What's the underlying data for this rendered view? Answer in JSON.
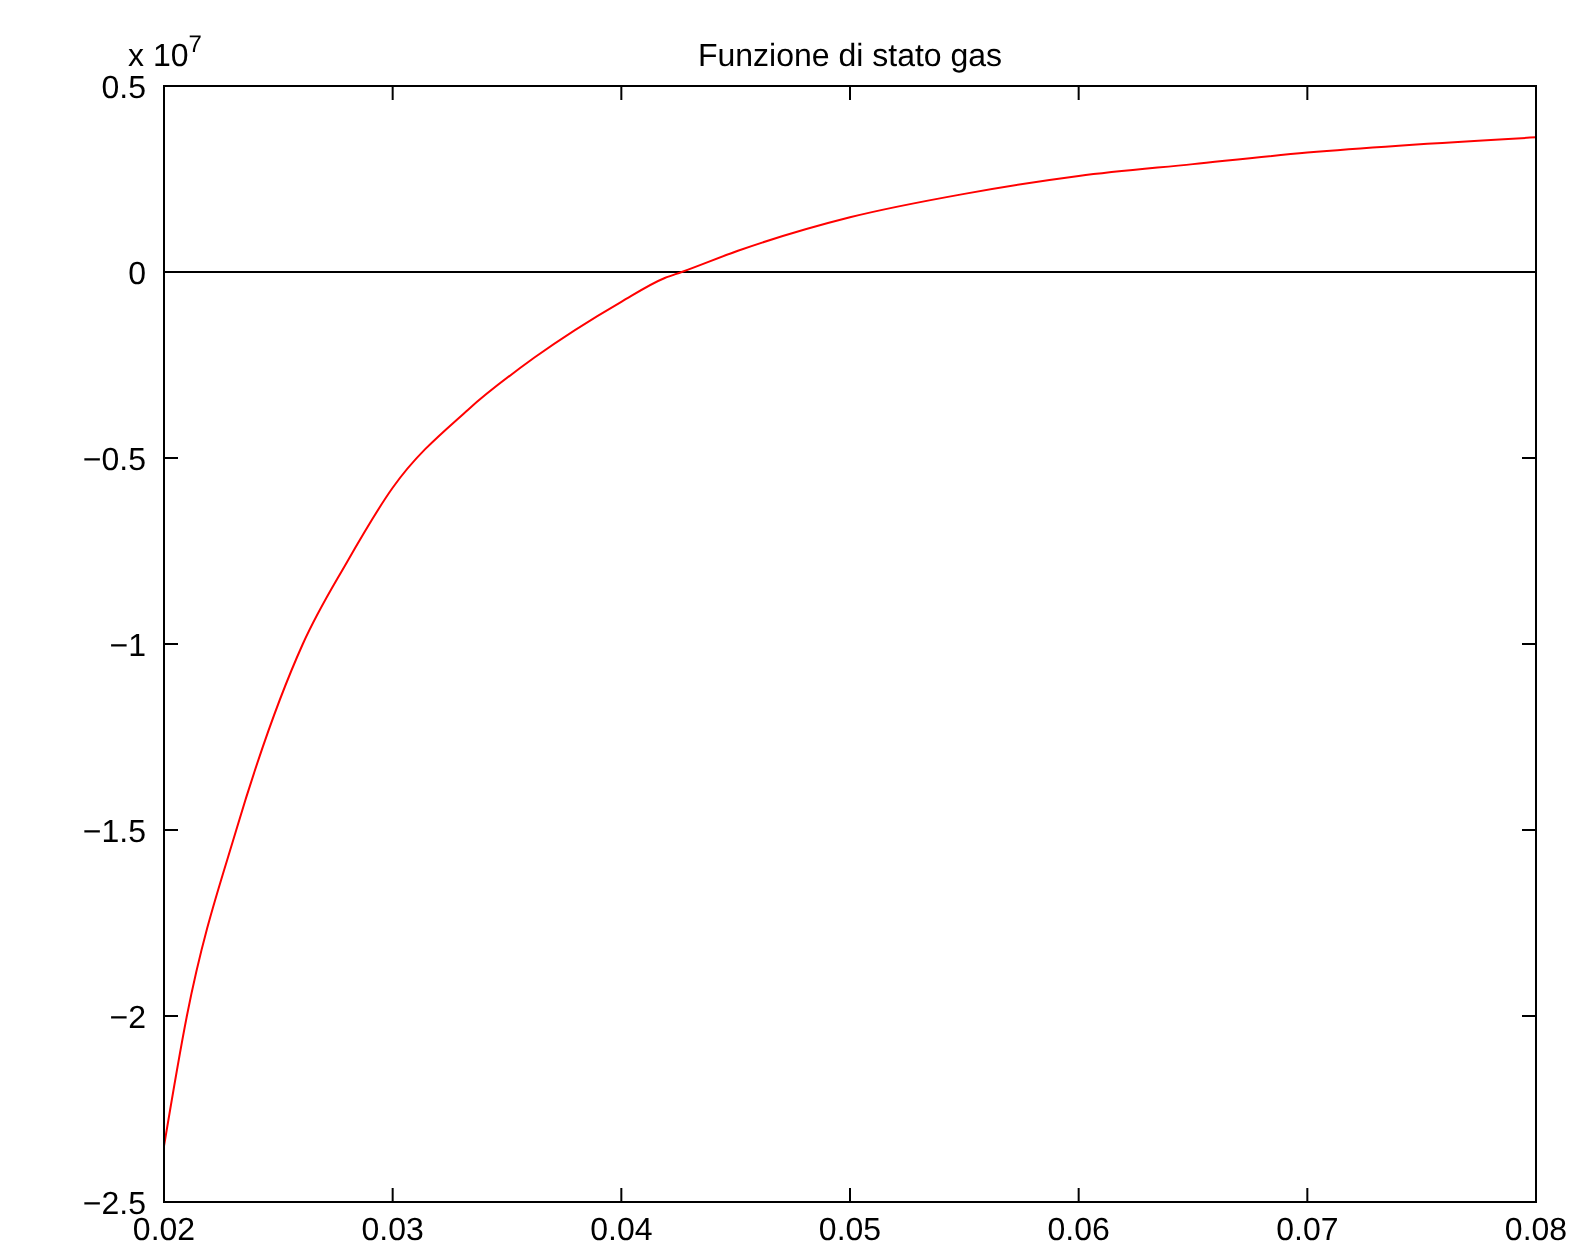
{
  "chart_data": {
    "type": "line",
    "title": "Funzione di stato gas",
    "x": [
      0.02,
      0.021,
      0.02316,
      0.02607,
      0.028,
      0.03,
      0.0333,
      0.0362,
      0.04,
      0.0419,
      0.04264,
      0.0451,
      0.05,
      0.055,
      0.06,
      0.065,
      0.07,
      0.08
    ],
    "series": [
      {
        "color": "#ff0000",
        "values": [
          -2.35,
          -2.0,
          -1.5,
          -1.0,
          -0.78,
          -0.58,
          -0.37,
          -0.23,
          -0.08,
          -0.016,
          0,
          0.057,
          0.147,
          0.21,
          0.258,
          0.29,
          0.321,
          0.362
        ]
      }
    ],
    "xlim": [
      0.02,
      0.08
    ],
    "xticks": [
      0.02,
      0.03,
      0.04,
      0.05,
      0.06,
      0.07,
      0.08
    ],
    "ylim": [
      -2.5,
      0.5
    ],
    "yticks": [
      -2.5,
      -2,
      -1.5,
      -1,
      -0.5,
      0,
      0.5
    ],
    "ref_lines": [
      {
        "axis": "y",
        "value": 0,
        "color": "#000000"
      }
    ],
    "annotations": [
      "x 10$^{7}$"
    ],
    "grid": false,
    "marker": "none",
    "line_style": "solid"
  }
}
